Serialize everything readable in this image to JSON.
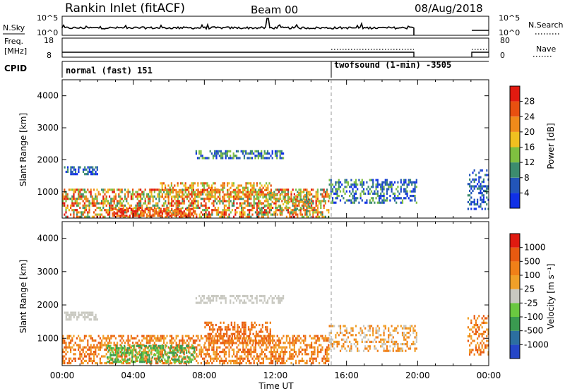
{
  "header": {
    "station": "Rankin Inlet (fitACF)",
    "beam": "Beam 00",
    "date": "08/Aug/2018"
  },
  "summary_panels": {
    "nsky_label": "N.Sky",
    "nsky_ticks": [
      "10^5",
      "10^0"
    ],
    "nsearch_label": "N.Search",
    "nsearch_ticks": [
      "10^5",
      "10^0"
    ],
    "freq_label_1": "Freq.",
    "freq_label_2": "[MHz]",
    "freq_ticks": [
      "18",
      "8"
    ],
    "nave_label": "Nave",
    "nave_ticks": [
      "80",
      "0"
    ],
    "cpid_label": "CPID",
    "cpid_segments": [
      {
        "label": "normal (fast) 151",
        "start_hour": 0,
        "end_hour": 15
      },
      {
        "label": "twofsound (1-min) -3505",
        "start_hour": 15,
        "end_hour": 24
      }
    ]
  },
  "colors": {
    "power_scale": [
      "#1030e6",
      "#2255b8",
      "#3c8c6e",
      "#7fbf40",
      "#f0c020",
      "#f08a1a",
      "#e85010",
      "#e21a10"
    ],
    "velocity_scale": [
      "#2546c8",
      "#2c6fa0",
      "#3a9a50",
      "#6ac840",
      "#c8c8c0",
      "#f0a028",
      "#f08018",
      "#e85a10",
      "#e01a10"
    ]
  },
  "chart_data": [
    {
      "type": "heatmap",
      "title": "Power",
      "xlabel": "",
      "ylabel": "Slant Range [km]",
      "xlim": [
        0,
        24
      ],
      "ylim": [
        180,
        4500
      ],
      "yticks": [
        "1000",
        "2000",
        "3000",
        "4000"
      ],
      "colorbar_label": "Power [dB]",
      "colorbar_ticks": [
        "4",
        "8",
        "12",
        "16",
        "20",
        "24",
        "28"
      ],
      "colorbar_range": [
        0,
        32
      ],
      "description_regions": [
        {
          "start_hour": 0,
          "end_hour": 15,
          "range_km": [
            200,
            1800
          ],
          "value_db": [
            4,
            32
          ]
        },
        {
          "start_hour": 7.5,
          "end_hour": 12.5,
          "range_km": [
            2100,
            2300
          ],
          "value_db": [
            4,
            12
          ]
        },
        {
          "start_hour": 15,
          "end_hour": 20,
          "range_km": [
            600,
            1500
          ],
          "value_db": [
            4,
            16
          ]
        },
        {
          "start_hour": 22.8,
          "end_hour": 24,
          "range_km": [
            500,
            1700
          ],
          "value_db": [
            4,
            12
          ]
        }
      ]
    },
    {
      "type": "heatmap",
      "title": "Velocity",
      "xlabel": "Time UT",
      "ylabel": "Slant Range [km]",
      "xlim": [
        0,
        24
      ],
      "ylim": [
        180,
        4500
      ],
      "yticks": [
        "1000",
        "2000",
        "3000",
        "4000"
      ],
      "xticks": [
        "00:00",
        "04:00",
        "08:00",
        "12:00",
        "16:00",
        "20:00",
        "00:00"
      ],
      "colorbar_label": "Velocity [m s⁻¹]",
      "colorbar_ticks": [
        "1000",
        "500",
        "100",
        "25",
        "-25",
        "-100",
        "-500",
        "-1000"
      ]
    }
  ]
}
